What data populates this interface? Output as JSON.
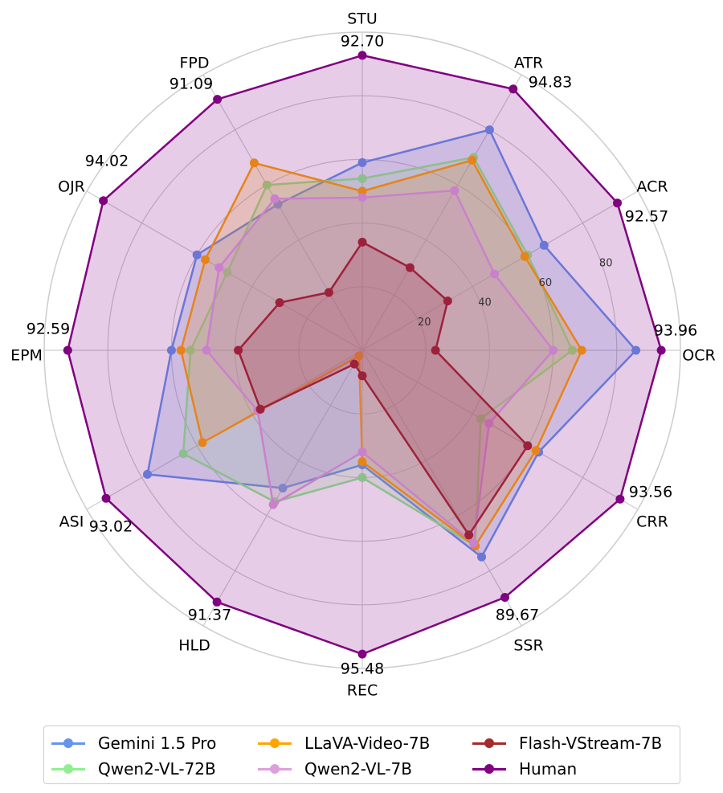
{
  "chart_data": {
    "type": "radar",
    "title": "",
    "axes": [
      "OCR",
      "ACR",
      "ATR",
      "STU",
      "FPD",
      "OJR",
      "EPM",
      "ASI",
      "HLD",
      "REC",
      "SSR",
      "CRR"
    ],
    "rlim": [
      0,
      100
    ],
    "radial_ticks": [
      "20",
      "40",
      "60",
      "80"
    ],
    "grid": true,
    "legend_position": "bottom",
    "series": [
      {
        "name": "Gemini 1.5 Pro",
        "color": "#6495ED",
        "values": [
          86,
          66,
          80,
          59,
          53,
          60,
          60,
          78,
          50,
          36,
          75,
          64
        ]
      },
      {
        "name": "Qwen2-VL-72B",
        "color": "#90EE90",
        "values": [
          66,
          60,
          70,
          54,
          60,
          49,
          54,
          65,
          55,
          40,
          71,
          43
        ]
      },
      {
        "name": "LLaVA-Video-7B",
        "color": "#FFA500",
        "values": [
          69,
          59,
          69,
          50,
          68,
          57,
          57,
          58,
          2,
          35,
          71,
          63
        ]
      },
      {
        "name": "Qwen2-VL-7B",
        "color": "#DDA0DD",
        "values": [
          60,
          48,
          58,
          48,
          55,
          52,
          49,
          38,
          56,
          32,
          70,
          46
        ]
      },
      {
        "name": "Flash-VStream-7B",
        "color": "#A52A2A",
        "values": [
          23,
          31,
          30,
          34,
          21,
          30,
          39,
          37,
          5,
          8,
          67,
          60
        ]
      },
      {
        "name": "Human",
        "color": "#800080",
        "values": [
          93.96,
          92.57,
          94.83,
          92.7,
          91.09,
          94.02,
          92.59,
          93.02,
          91.37,
          95.48,
          89.67,
          93.56
        ]
      }
    ],
    "human_value_labels": [
      "93.96",
      "92.57",
      "94.83",
      "92.70",
      "91.09",
      "94.02",
      "92.59",
      "93.02",
      "91.37",
      "95.48",
      "89.67",
      "93.56"
    ]
  }
}
